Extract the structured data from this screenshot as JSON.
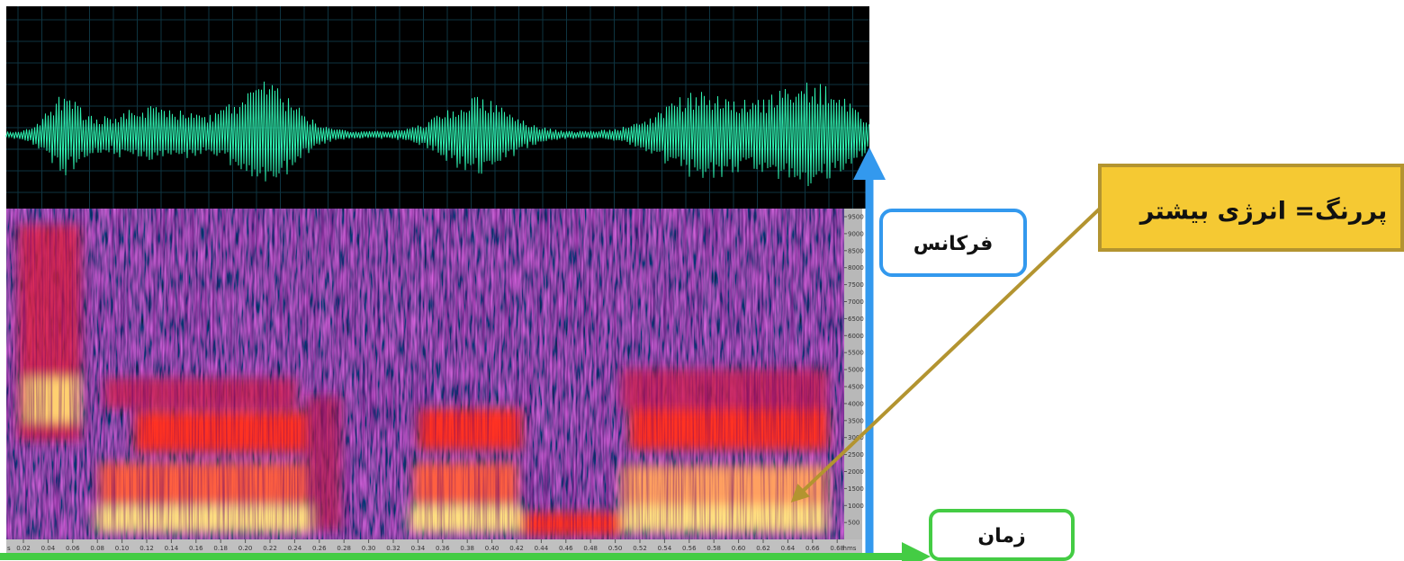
{
  "annotations": {
    "frequency_label": "فرکانس",
    "time_label": "زمان",
    "energy_note": "پررنگ= انرژی بیشتر"
  },
  "frequency_axis": {
    "ticks": [
      "9500",
      "9000",
      "8500",
      "8000",
      "7500",
      "7000",
      "6500",
      "6000",
      "5500",
      "5000",
      "4500",
      "4000",
      "3500",
      "3000",
      "2500",
      "2000",
      "1500",
      "1000",
      "500"
    ]
  },
  "time_axis": {
    "start_label": "s",
    "ticks": [
      "0.02",
      "0.04",
      "0.06",
      "0.08",
      "0.10",
      "0.12",
      "0.14",
      "0.16",
      "0.18",
      "0.20",
      "0.22",
      "0.24",
      "0.26",
      "0.28",
      "0.30",
      "0.32",
      "0.34",
      "0.36",
      "0.38",
      "0.40",
      "0.42",
      "0.44",
      "0.46",
      "0.48",
      "0.50",
      "0.52",
      "0.54",
      "0.56",
      "0.58",
      "0.60",
      "0.62",
      "0.64",
      "0.66",
      "0.68"
    ],
    "unit": "hms"
  }
}
